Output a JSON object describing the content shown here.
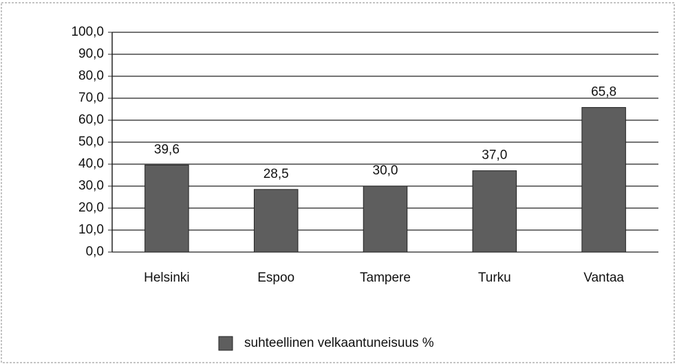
{
  "chart_data": {
    "type": "bar",
    "categories": [
      "Helsinki",
      "Espoo",
      "Tampere",
      "Turku",
      "Vantaa"
    ],
    "series": [
      {
        "name": "suhteellinen velkaantuneisuus %",
        "color": "#5e5e5e",
        "values": [
          39.6,
          28.5,
          30.0,
          37.0,
          65.8
        ],
        "value_labels": [
          "39,6",
          "28,5",
          "30,0",
          "37,0",
          "65,8"
        ]
      }
    ],
    "ylim": [
      0,
      100
    ],
    "yticks": [
      {
        "value": 0,
        "label": "0,0"
      },
      {
        "value": 10,
        "label": "10,0"
      },
      {
        "value": 20,
        "label": "20,0"
      },
      {
        "value": 30,
        "label": "30,0"
      },
      {
        "value": 40,
        "label": "40,0"
      },
      {
        "value": 50,
        "label": "50,0"
      },
      {
        "value": 60,
        "label": "60,0"
      },
      {
        "value": 70,
        "label": "70,0"
      },
      {
        "value": 80,
        "label": "80,0"
      },
      {
        "value": 90,
        "label": "90,0"
      },
      {
        "value": 100,
        "label": "100,0"
      }
    ],
    "grid": true,
    "legend": "bottom"
  }
}
